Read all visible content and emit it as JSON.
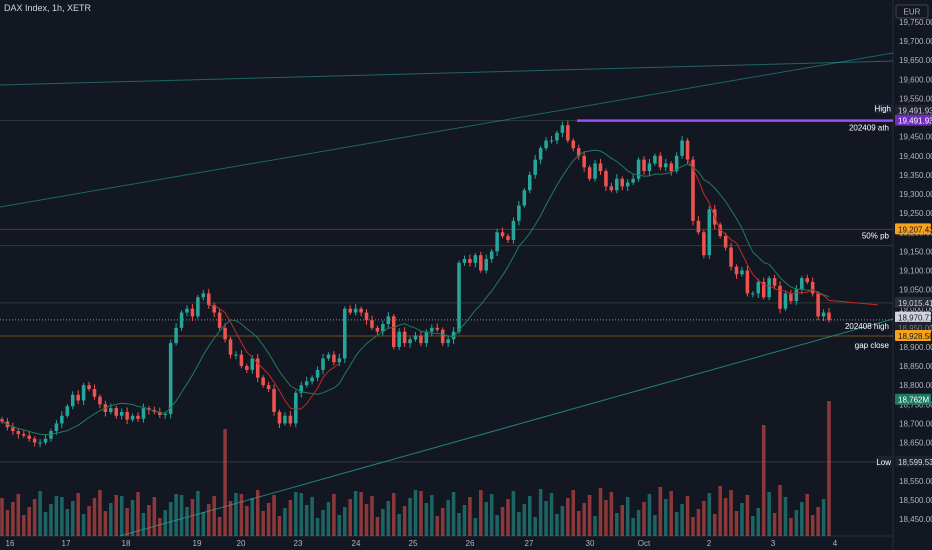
{
  "header": {
    "title": "DAX Index, 1h, XETR"
  },
  "currency": "EUR",
  "tags": {
    "high_label": "High",
    "high_value": "19,491.93",
    "ath_label": "202409 ath",
    "ath_value": "19,491.93",
    "pb_label": "50% pb",
    "pb_value": "19,207.43",
    "p1_value": "19,015.41",
    "last_value": "18,970.71",
    "p2_value": "18,950.00",
    "h202408_label": "202408 high",
    "gap_label": "gap close",
    "gap_value": "18,928.58",
    "vol_value": "18,762M",
    "low_label": "Low",
    "low_value": "18,599.53"
  },
  "colors": {
    "up": "#26a69a",
    "down": "#ef5350",
    "bg": "#131722",
    "purple": "#9c4dff",
    "orange": "#f7a21b",
    "blue": "#2962ff"
  },
  "chart_data": {
    "type": "candlestick",
    "instrument": "DAX Index",
    "interval": "1h",
    "exchange": "XETR",
    "ylim": [
      18420,
      19760
    ],
    "y_ticks": [
      18450,
      18500,
      18550,
      18600,
      18650,
      18700,
      18750,
      18800,
      18850,
      18900,
      18950,
      19000,
      19050,
      19100,
      19150,
      19200,
      19250,
      19300,
      19350,
      19400,
      19450,
      19500,
      19550,
      19600,
      19650,
      19700,
      19750
    ],
    "x_labels": [
      "16",
      "17",
      "18",
      "19",
      "20",
      "23",
      "24",
      "25",
      "26",
      "27",
      "30",
      "Oct",
      "2",
      "3",
      "4"
    ],
    "horizontal_levels": [
      {
        "label": "High",
        "value": 19491.93
      },
      {
        "label": "202409 ath",
        "value": 19491.93
      },
      {
        "label": "50% pb",
        "value": 19207.43
      },
      {
        "value": 19015.41
      },
      {
        "label": "202408 high",
        "value": 18970.71
      },
      {
        "label": "gap close",
        "value": 18928.58
      },
      {
        "label": "Low",
        "value": 18599.53
      }
    ],
    "closes": [
      18705,
      18690,
      18680,
      18672,
      18668,
      18660,
      18650,
      18650,
      18660,
      18680,
      18700,
      18720,
      18745,
      18775,
      18760,
      18800,
      18790,
      18770,
      18750,
      18730,
      18740,
      18720,
      18730,
      18710,
      18720,
      18712,
      18740,
      18735,
      18730,
      18722,
      18725,
      18910,
      18950,
      18990,
      19000,
      18980,
      19030,
      19040,
      19010,
      18990,
      18950,
      18920,
      18880,
      18880,
      18850,
      18840,
      18870,
      18820,
      18800,
      18790,
      18730,
      18700,
      18720,
      18700,
      18780,
      18800,
      18810,
      18820,
      18840,
      18870,
      18880,
      18860,
      18870,
      19000,
      18990,
      19000,
      18990,
      18970,
      18950,
      18940,
      18960,
      18980,
      18900,
      18940,
      18910,
      18920,
      18930,
      18910,
      18940,
      18950,
      18945,
      18910,
      18920,
      18940,
      19120,
      19130,
      19120,
      19140,
      19100,
      19130,
      19150,
      19200,
      19190,
      19180,
      19230,
      19270,
      19310,
      19350,
      19390,
      19420,
      19440,
      19440,
      19460,
      19480,
      19440,
      19420,
      19400,
      19370,
      19340,
      19380,
      19360,
      19320,
      19310,
      19340,
      19320,
      19330,
      19340,
      19390,
      19360,
      19380,
      19400,
      19370,
      19380,
      19360,
      19400,
      19440,
      19390,
      19230,
      19200,
      19140,
      19260,
      19220,
      19190,
      19160,
      19110,
      19090,
      19100,
      19040,
      19040,
      19070,
      19030,
      19080,
      19060,
      19000,
      19040,
      19020,
      19050,
      19080,
      19070,
      19040,
      18980,
      18990,
      18970
    ]
  }
}
